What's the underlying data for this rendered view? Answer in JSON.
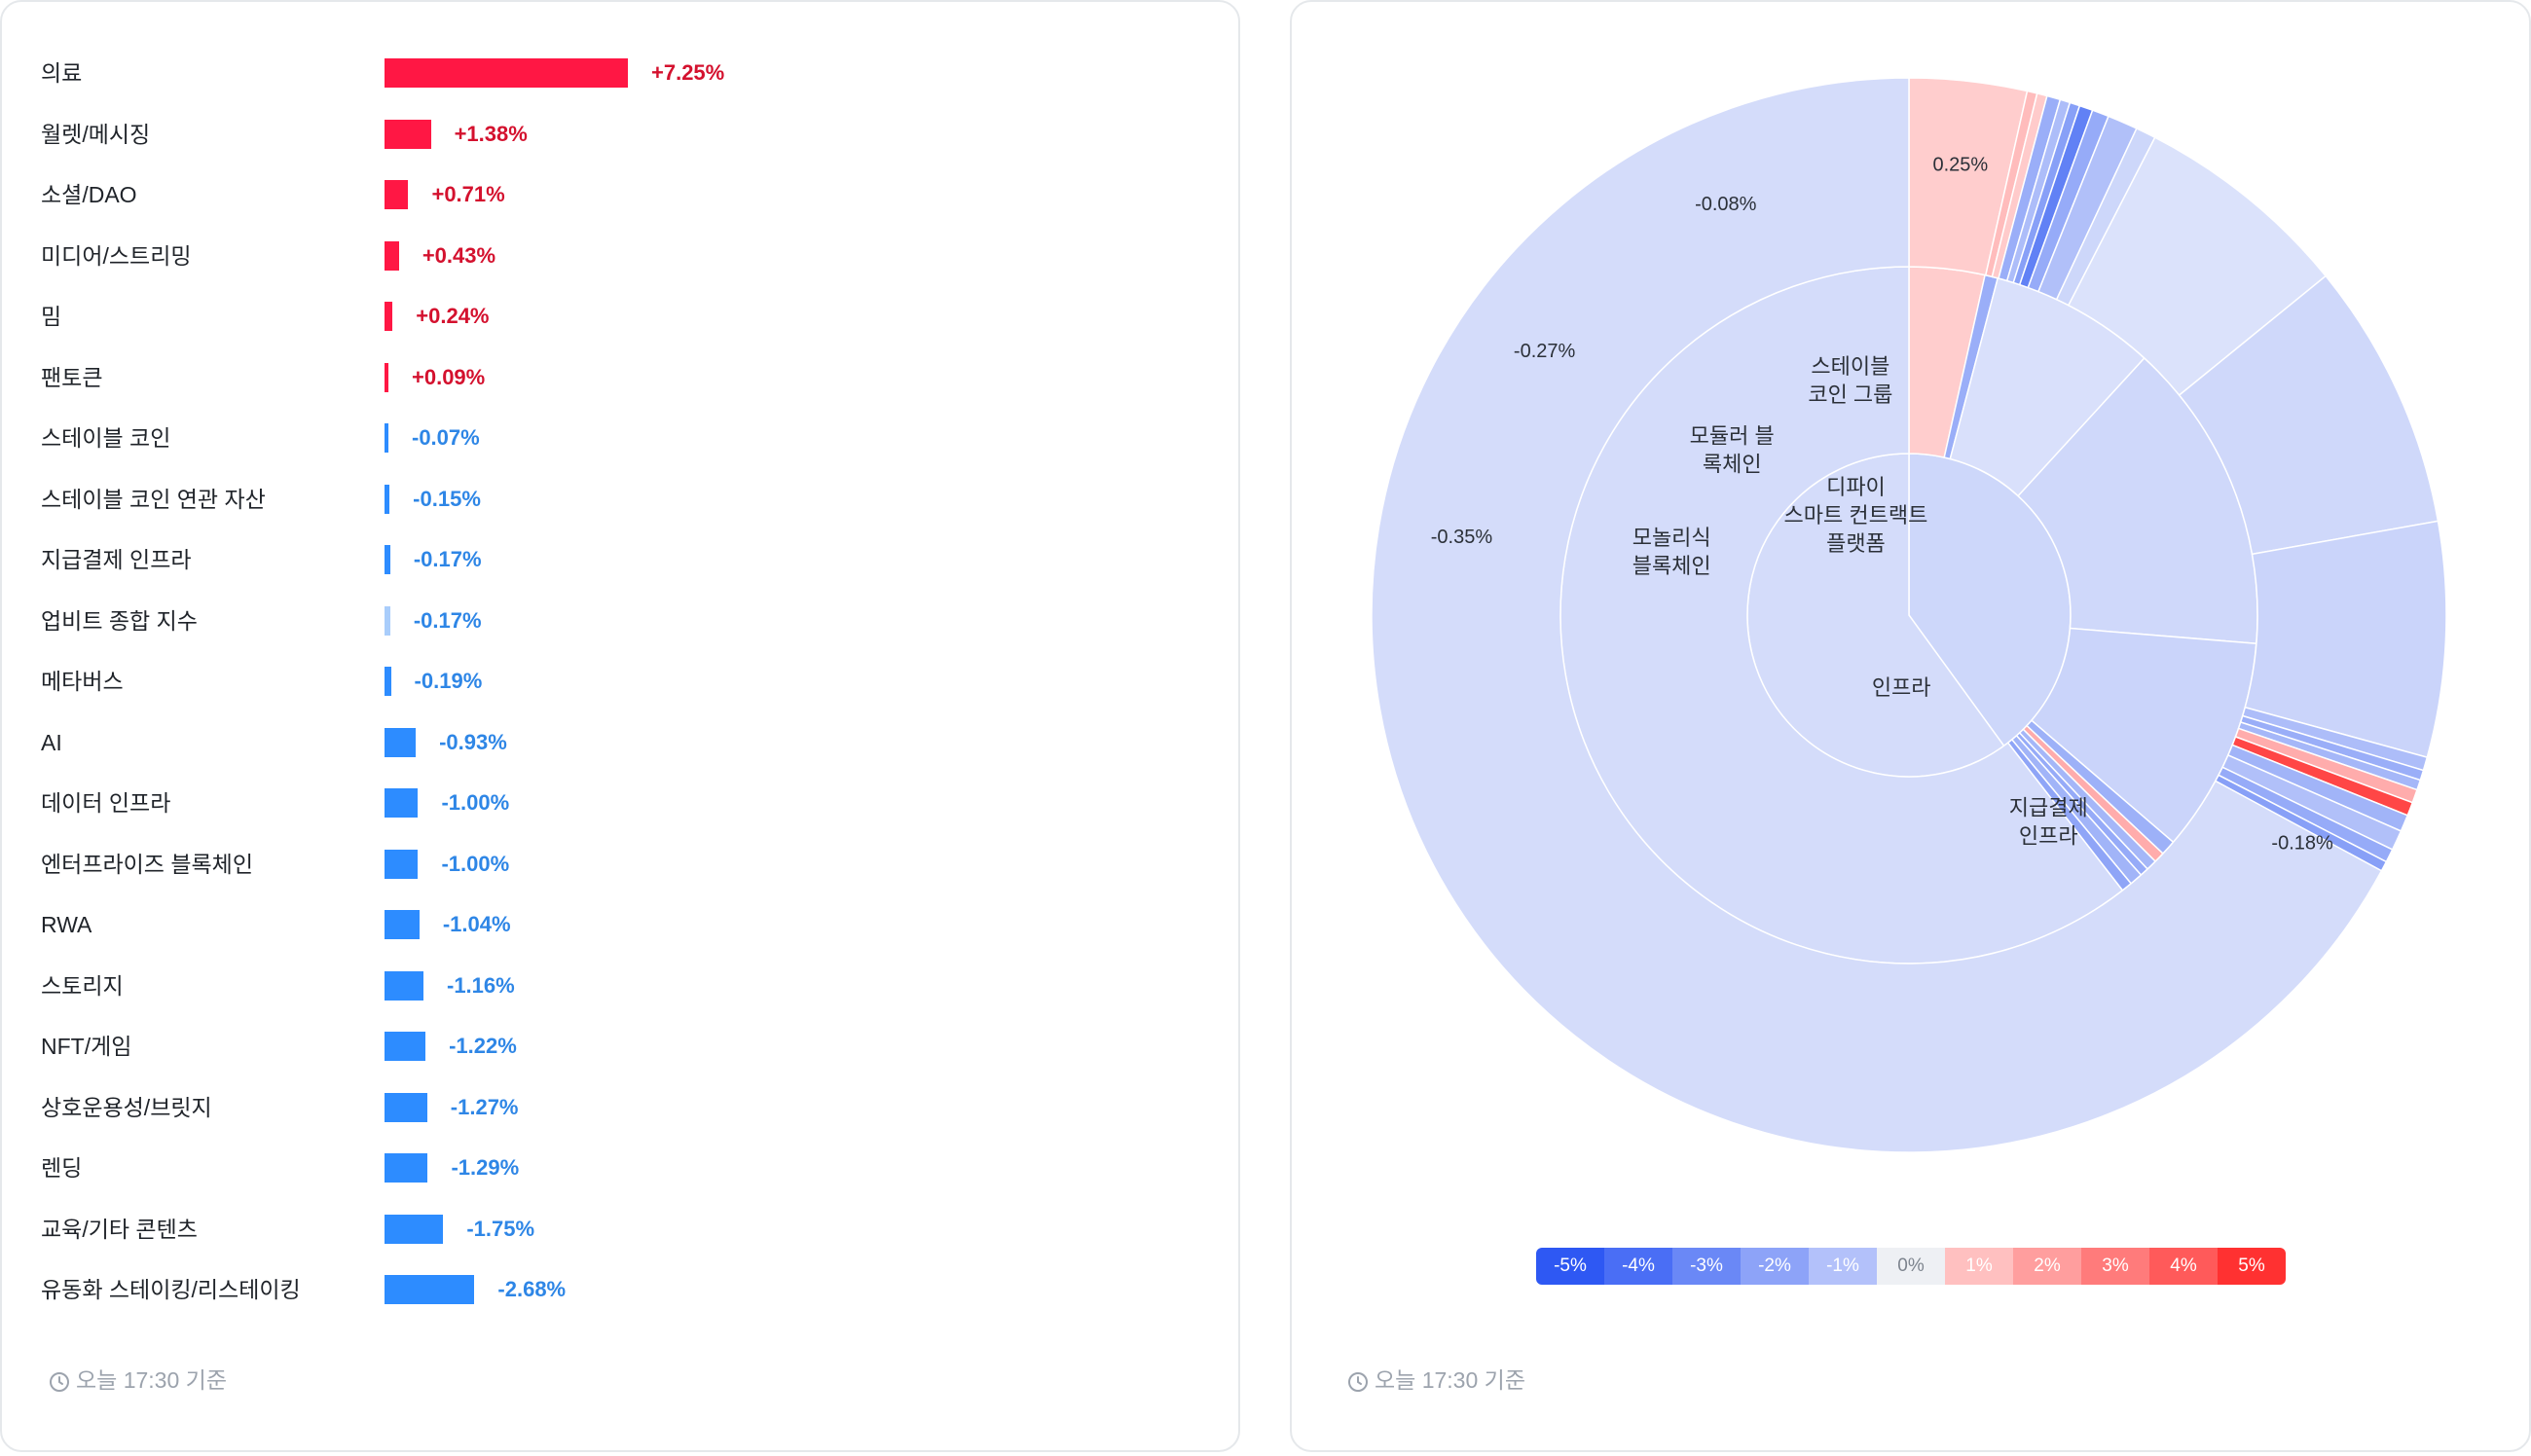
{
  "bar_chart": {
    "footer": "오늘 17:30 기준",
    "colors": {
      "positive": "#ff1744",
      "negative": "#2d8cff",
      "negative_light": "#a9cdfb"
    }
  },
  "chart_data": [
    {
      "type": "bar",
      "orientation": "horizontal",
      "categories": [
        "의료",
        "월렛/메시징",
        "소셜/DAO",
        "미디어/스트리밍",
        "밈",
        "팬토큰",
        "스테이블 코인",
        "스테이블 코인 연관 자산",
        "지급결제 인프라",
        "업비트 종합 지수",
        "메타버스",
        "AI",
        "데이터 인프라",
        "엔터프라이즈 블록체인",
        "RWA",
        "스토리지",
        "NFT/게임",
        "상호운용성/브릿지",
        "렌딩",
        "교육/기타 콘텐츠",
        "유동화 스테이킹/리스테이킹"
      ],
      "values": [
        7.25,
        1.38,
        0.71,
        0.43,
        0.24,
        0.09,
        -0.07,
        -0.15,
        -0.17,
        -0.17,
        -0.19,
        -0.93,
        -1.0,
        -1.0,
        -1.04,
        -1.16,
        -1.22,
        -1.27,
        -1.29,
        -1.75,
        -2.68
      ],
      "value_labels": [
        "+7.25%",
        "+1.38%",
        "+0.71%",
        "+0.43%",
        "+0.24%",
        "+0.09%",
        "-0.07%",
        "-0.15%",
        "-0.17%",
        "-0.17%",
        "-0.19%",
        "-0.93%",
        "-1.00%",
        "-1.00%",
        "-1.04%",
        "-1.16%",
        "-1.22%",
        "-1.27%",
        "-1.29%",
        "-1.75%",
        "-2.68%"
      ],
      "highlight_category": "업비트 종합 지수"
    },
    {
      "type": "sunburst",
      "footer": "오늘 17:30 기준",
      "rings": {
        "inner": [
          {
            "name": "디파이\n스마트 컨트랙트\n플랫폼",
            "share": 0.4,
            "value": -0.3
          },
          {
            "name": "인프라",
            "share": 0.6,
            "value": -0.18
          }
        ],
        "middle": [
          {
            "name": "",
            "share": 0.035,
            "value": 0.25
          },
          {
            "name": "",
            "share": 0.006,
            "value": -1.5
          },
          {
            "name": "스테이블\n코인 그룹",
            "share": 0.077,
            "value": -0.1
          },
          {
            "name": "모듈러 블\n록체인",
            "share": 0.145,
            "value": -0.27
          },
          {
            "name": "모놀리식\n블록체인",
            "share": 0.1,
            "value": -0.35
          },
          {
            "name": "",
            "share": 0.007,
            "value": -1.4
          },
          {
            "name": "",
            "share": 0.005,
            "value": 1.0
          },
          {
            "name": "",
            "share": 0.005,
            "value": -1.2
          },
          {
            "name": "",
            "share": 0.004,
            "value": -1.6
          },
          {
            "name": "",
            "share": 0.006,
            "value": -1.3
          },
          {
            "name": "",
            "share": 0.005,
            "value": -1.8
          },
          {
            "name": "지급결제\n인프라",
            "share": 0.605,
            "value": -0.18
          }
        ],
        "outer": [
          {
            "name": "0.25%",
            "share": 0.035,
            "value": 0.25
          },
          {
            "name": "",
            "share": 0.003,
            "value": 0.6
          },
          {
            "name": "",
            "share": 0.003,
            "value": 0.3
          },
          {
            "name": "",
            "share": 0.004,
            "value": -1.5
          },
          {
            "name": "",
            "share": 0.003,
            "value": -1.0
          },
          {
            "name": "",
            "share": 0.003,
            "value": -2.0
          },
          {
            "name": "",
            "share": 0.004,
            "value": -3.2
          },
          {
            "name": "",
            "share": 0.005,
            "value": -1.6
          },
          {
            "name": "",
            "share": 0.009,
            "value": -0.9
          },
          {
            "name": "",
            "share": 0.006,
            "value": -0.3
          },
          {
            "name": "-0.08%",
            "share": 0.065,
            "value": -0.08
          },
          {
            "name": "-0.27%",
            "share": 0.08,
            "value": -0.27
          },
          {
            "name": "-0.35%",
            "share": 0.07,
            "value": -0.35
          },
          {
            "name": "",
            "share": 0.004,
            "value": -1.0
          },
          {
            "name": "",
            "share": 0.003,
            "value": -1.5
          },
          {
            "name": "",
            "share": 0.003,
            "value": -1.2
          },
          {
            "name": "",
            "share": 0.004,
            "value": 1.0
          },
          {
            "name": "",
            "share": 0.004,
            "value": 4.2
          },
          {
            "name": "",
            "share": 0.005,
            "value": -1.3
          },
          {
            "name": "",
            "share": 0.006,
            "value": -0.9
          },
          {
            "name": "",
            "share": 0.004,
            "value": -1.6
          },
          {
            "name": "",
            "share": 0.003,
            "value": -2.0
          },
          {
            "name": "-0.18%",
            "share": 0.665,
            "value": -0.18
          }
        ]
      },
      "legend": [
        "-5%",
        "-4%",
        "-3%",
        "-2%",
        "-1%",
        "0%",
        "1%",
        "2%",
        "3%",
        "4%",
        "5%"
      ],
      "legend_colors": [
        "#2e58f3",
        "#4a6ef5",
        "#6a88f6",
        "#8da3f8",
        "#b3c1fa",
        "#eef0f4",
        "#ffc0c0",
        "#ff9e9e",
        "#ff7b7b",
        "#ff5a5a",
        "#ff3131"
      ]
    }
  ]
}
